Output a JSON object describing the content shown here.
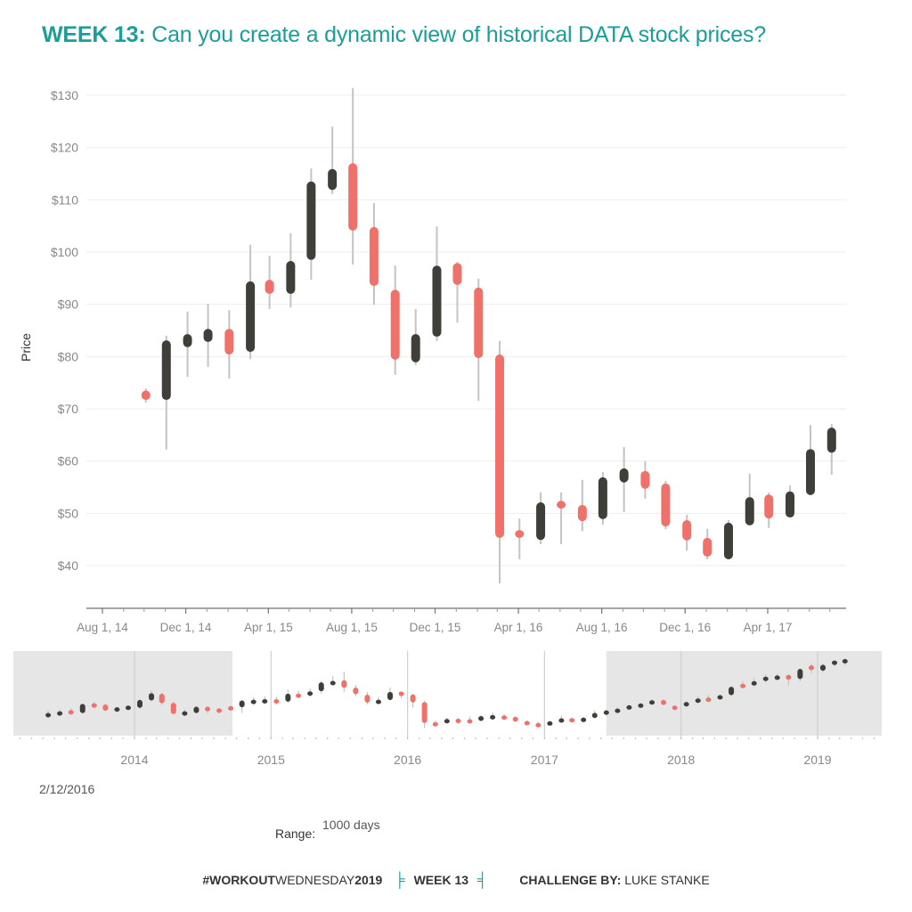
{
  "title": {
    "bold": "WEEK 13:",
    "rest": "Can you create a dynamic view of historical DATA stock prices?"
  },
  "colors": {
    "title_teal": "#1a9e97",
    "increase": "#3f3e39",
    "decrease": "#f0706a",
    "wick": "#c4c4c4",
    "gridline": "#eeeeee",
    "overview_shade": "#e6e6e6"
  },
  "controls": {
    "selected_date": "2/12/2016",
    "range_label": "Range:",
    "range_value": "1000 days"
  },
  "footer": {
    "hashtag_bold": "#WORKOUT",
    "hashtag_normal": "WEDNESDAY",
    "hashtag_year": "2019",
    "bracket_left": "╞",
    "week": "WEEK 13",
    "bracket_right": "╡",
    "challenge_label": "CHALLENGE BY:",
    "challenge_name": "LUKE STANKE"
  },
  "chart_data": [
    {
      "type": "candlestick",
      "name": "main-price-chart",
      "title": "",
      "xlabel": "",
      "ylabel": "Price",
      "ylim": [
        31,
        133
      ],
      "yticks": [
        40,
        50,
        60,
        70,
        80,
        90,
        100,
        110,
        120,
        130
      ],
      "ytick_labels": [
        "$40",
        "$50",
        "$60",
        "$70",
        "$80",
        "$90",
        "$100",
        "$110",
        "$120",
        "$130"
      ],
      "xlim": [
        "2014-06-20",
        "2017-09-20"
      ],
      "xticks": [
        "2014-08-01",
        "2014-12-01",
        "2015-04-01",
        "2015-08-01",
        "2015-12-01",
        "2016-04-01",
        "2016-08-01",
        "2016-12-01",
        "2017-04-01"
      ],
      "xtick_labels": [
        "Aug 1, 14",
        "Dec 1, 14",
        "Apr 1, 15",
        "Aug 1, 15",
        "Dec 1, 15",
        "Apr 1, 16",
        "Aug 1, 16",
        "Dec 1, 16",
        "Apr 1, 17"
      ],
      "grid": true,
      "candles": [
        {
          "date": "2014-09",
          "open": 73.5,
          "close": 71.7,
          "high": 73.9,
          "low": 71.2
        },
        {
          "date": "2014-10",
          "open": 71.7,
          "close": 83.1,
          "high": 84.0,
          "low": 62.2
        },
        {
          "date": "2014-11",
          "open": 81.8,
          "close": 84.3,
          "high": 88.6,
          "low": 76.1
        },
        {
          "date": "2014-12",
          "open": 82.8,
          "close": 85.3,
          "high": 90.1,
          "low": 78.0
        },
        {
          "date": "2015-01",
          "open": 85.3,
          "close": 80.4,
          "high": 88.9,
          "low": 75.8
        },
        {
          "date": "2015-02",
          "open": 80.9,
          "close": 94.4,
          "high": 101.4,
          "low": 79.5
        },
        {
          "date": "2015-03",
          "open": 94.7,
          "close": 92.0,
          "high": 99.3,
          "low": 89.1
        },
        {
          "date": "2015-04",
          "open": 92.0,
          "close": 98.3,
          "high": 103.6,
          "low": 89.4
        },
        {
          "date": "2015-05",
          "open": 98.5,
          "close": 113.5,
          "high": 116.0,
          "low": 94.7
        },
        {
          "date": "2015-06",
          "open": 111.9,
          "close": 115.9,
          "high": 124.0,
          "low": 111.1
        },
        {
          "date": "2015-07",
          "open": 117.0,
          "close": 104.1,
          "high": 131.4,
          "low": 97.6
        },
        {
          "date": "2015-08",
          "open": 104.8,
          "close": 93.5,
          "high": 109.4,
          "low": 89.9
        },
        {
          "date": "2015-09",
          "open": 92.8,
          "close": 79.4,
          "high": 97.4,
          "low": 76.5
        },
        {
          "date": "2015-10",
          "open": 78.9,
          "close": 84.3,
          "high": 89.1,
          "low": 78.4
        },
        {
          "date": "2015-11",
          "open": 83.8,
          "close": 97.4,
          "high": 104.9,
          "low": 83.0
        },
        {
          "date": "2015-12",
          "open": 97.9,
          "close": 93.7,
          "high": 98.1,
          "low": 86.5
        },
        {
          "date": "2016-01",
          "open": 93.2,
          "close": 79.7,
          "high": 94.9,
          "low": 71.5
        },
        {
          "date": "2016-02",
          "open": 80.4,
          "close": 45.3,
          "high": 83.0,
          "low": 36.6
        },
        {
          "date": "2016-03",
          "open": 46.8,
          "close": 45.3,
          "high": 49.0,
          "low": 41.2
        },
        {
          "date": "2016-04",
          "open": 44.9,
          "close": 52.1,
          "high": 54.0,
          "low": 44.1
        },
        {
          "date": "2016-05",
          "open": 52.4,
          "close": 50.9,
          "high": 54.0,
          "low": 44.1
        },
        {
          "date": "2016-06",
          "open": 51.6,
          "close": 48.5,
          "high": 56.4,
          "low": 46.6
        },
        {
          "date": "2016-07",
          "open": 48.9,
          "close": 56.9,
          "high": 57.9,
          "low": 47.8
        },
        {
          "date": "2016-08",
          "open": 55.9,
          "close": 58.6,
          "high": 62.7,
          "low": 50.2
        },
        {
          "date": "2016-09",
          "open": 58.1,
          "close": 54.7,
          "high": 60.0,
          "low": 52.8
        },
        {
          "date": "2016-10",
          "open": 55.7,
          "close": 47.5,
          "high": 56.2,
          "low": 47.0
        },
        {
          "date": "2016-11",
          "open": 48.7,
          "close": 44.8,
          "high": 49.7,
          "low": 42.9
        },
        {
          "date": "2016-12",
          "open": 45.3,
          "close": 41.7,
          "high": 47.0,
          "low": 41.2
        },
        {
          "date": "2017-01",
          "open": 41.2,
          "close": 48.2,
          "high": 48.7,
          "low": 41.2
        },
        {
          "date": "2017-02",
          "open": 47.7,
          "close": 53.1,
          "high": 57.6,
          "low": 47.7
        },
        {
          "date": "2017-03",
          "open": 53.6,
          "close": 49.0,
          "high": 54.0,
          "low": 47.2
        },
        {
          "date": "2017-04",
          "open": 49.2,
          "close": 54.2,
          "high": 55.3,
          "low": 49.2
        },
        {
          "date": "2017-05",
          "open": 53.5,
          "close": 62.3,
          "high": 66.9,
          "low": 53.5
        },
        {
          "date": "2017-06",
          "open": 61.6,
          "close": 66.4,
          "high": 67.1,
          "low": 57.4
        }
      ]
    },
    {
      "type": "candlestick",
      "name": "overview-range-chart",
      "title": "",
      "xlabel": "",
      "ylabel": "",
      "ylim": [
        30,
        160
      ],
      "xlim": [
        "2013-02-01",
        "2019-07-01"
      ],
      "xticks": [
        "2014-01-01",
        "2015-01-01",
        "2016-01-01",
        "2017-01-01",
        "2018-01-01",
        "2019-01-01"
      ],
      "xtick_labels": [
        "2014",
        "2015",
        "2016",
        "2017",
        "2018",
        "2019"
      ],
      "grid": false,
      "selection": {
        "start": "2014-09-20",
        "end": "2017-06-15",
        "days": 1000
      },
      "candles": [
        {
          "date": "2013-05",
          "open": 55.4,
          "close": 62.1,
          "high": 66,
          "low": 53
        },
        {
          "date": "2013-06",
          "open": 58.3,
          "close": 65.0,
          "high": 68,
          "low": 57
        },
        {
          "date": "2013-07",
          "open": 66.9,
          "close": 61.1,
          "high": 70,
          "low": 60
        },
        {
          "date": "2013-08",
          "open": 62.0,
          "close": 77.3,
          "high": 78,
          "low": 61
        },
        {
          "date": "2013-09",
          "open": 78.3,
          "close": 73.5,
          "high": 81,
          "low": 72
        },
        {
          "date": "2013-10",
          "open": 76.4,
          "close": 65.9,
          "high": 77,
          "low": 65
        },
        {
          "date": "2013-11",
          "open": 65.0,
          "close": 71.6,
          "high": 72,
          "low": 64
        },
        {
          "date": "2013-12",
          "open": 67.8,
          "close": 74.5,
          "high": 75,
          "low": 67
        },
        {
          "date": "2014-01",
          "open": 70.7,
          "close": 84.0,
          "high": 86,
          "low": 69
        },
        {
          "date": "2014-02",
          "open": 83.0,
          "close": 95.4,
          "high": 100,
          "low": 82
        },
        {
          "date": "2014-03",
          "open": 94.5,
          "close": 78.3,
          "high": 96,
          "low": 76
        },
        {
          "date": "2014-04",
          "open": 79.2,
          "close": 60.2,
          "high": 81,
          "low": 60
        },
        {
          "date": "2014-05",
          "open": 59.2,
          "close": 65.0,
          "high": 68,
          "low": 57
        },
        {
          "date": "2014-06",
          "open": 62.0,
          "close": 72.6,
          "high": 74,
          "low": 61
        },
        {
          "date": "2014-07",
          "open": 72.6,
          "close": 65.0,
          "high": 73,
          "low": 61
        },
        {
          "date": "2014-08",
          "open": 69.7,
          "close": 65.0,
          "high": 70,
          "low": 62
        },
        {
          "date": "2014-09",
          "open": 73.5,
          "close": 71.7,
          "high": 73.9,
          "low": 71.2
        },
        {
          "date": "2014-10",
          "open": 71.7,
          "close": 83.1,
          "high": 84.0,
          "low": 62.2
        },
        {
          "date": "2014-11",
          "open": 81.8,
          "close": 84.3,
          "high": 88.6,
          "low": 76.1
        },
        {
          "date": "2014-12",
          "open": 82.8,
          "close": 85.3,
          "high": 90.1,
          "low": 78.0
        },
        {
          "date": "2015-01",
          "open": 85.3,
          "close": 80.4,
          "high": 88.9,
          "low": 75.8
        },
        {
          "date": "2015-02",
          "open": 80.9,
          "close": 94.4,
          "high": 101.4,
          "low": 79.5
        },
        {
          "date": "2015-03",
          "open": 94.7,
          "close": 92.0,
          "high": 99.3,
          "low": 89.1
        },
        {
          "date": "2015-04",
          "open": 92.0,
          "close": 98.3,
          "high": 103.6,
          "low": 89.4
        },
        {
          "date": "2015-05",
          "open": 98.5,
          "close": 113.5,
          "high": 116.0,
          "low": 94.7
        },
        {
          "date": "2015-06",
          "open": 111.9,
          "close": 115.9,
          "high": 124.0,
          "low": 111.1
        },
        {
          "date": "2015-07",
          "open": 117.0,
          "close": 104.1,
          "high": 131.4,
          "low": 97.6
        },
        {
          "date": "2015-08",
          "open": 104.8,
          "close": 93.5,
          "high": 109.4,
          "low": 89.9
        },
        {
          "date": "2015-09",
          "open": 92.8,
          "close": 79.4,
          "high": 97.4,
          "low": 76.5
        },
        {
          "date": "2015-10",
          "open": 78.9,
          "close": 84.3,
          "high": 89.1,
          "low": 78.4
        },
        {
          "date": "2015-11",
          "open": 83.8,
          "close": 97.4,
          "high": 104.9,
          "low": 83.0
        },
        {
          "date": "2015-12",
          "open": 97.9,
          "close": 93.7,
          "high": 98.1,
          "low": 86.5
        },
        {
          "date": "2016-01",
          "open": 93.2,
          "close": 79.7,
          "high": 94.9,
          "low": 71.5
        },
        {
          "date": "2016-02",
          "open": 80.4,
          "close": 45.3,
          "high": 83.0,
          "low": 36.6
        },
        {
          "date": "2016-03",
          "open": 46.8,
          "close": 45.3,
          "high": 49.0,
          "low": 41.2
        },
        {
          "date": "2016-04",
          "open": 44.9,
          "close": 52.1,
          "high": 54.0,
          "low": 44.1
        },
        {
          "date": "2016-05",
          "open": 52.4,
          "close": 50.9,
          "high": 54.0,
          "low": 44.1
        },
        {
          "date": "2016-06",
          "open": 51.6,
          "close": 48.5,
          "high": 56.4,
          "low": 46.6
        },
        {
          "date": "2016-07",
          "open": 48.9,
          "close": 56.9,
          "high": 57.9,
          "low": 47.8
        },
        {
          "date": "2016-08",
          "open": 55.9,
          "close": 58.6,
          "high": 62.7,
          "low": 50.2
        },
        {
          "date": "2016-09",
          "open": 58.1,
          "close": 54.7,
          "high": 60.0,
          "low": 52.8
        },
        {
          "date": "2016-10",
          "open": 55.7,
          "close": 47.5,
          "high": 56.2,
          "low": 47.0
        },
        {
          "date": "2016-11",
          "open": 48.7,
          "close": 44.8,
          "high": 49.7,
          "low": 42.9
        },
        {
          "date": "2016-12",
          "open": 45.3,
          "close": 41.7,
          "high": 47.0,
          "low": 41.2
        },
        {
          "date": "2017-01",
          "open": 41.2,
          "close": 48.2,
          "high": 48.7,
          "low": 41.2
        },
        {
          "date": "2017-02",
          "open": 47.7,
          "close": 53.1,
          "high": 57.6,
          "low": 47.7
        },
        {
          "date": "2017-03",
          "open": 53.6,
          "close": 49.0,
          "high": 54.0,
          "low": 47.2
        },
        {
          "date": "2017-04",
          "open": 49.2,
          "close": 54.2,
          "high": 55.3,
          "low": 49.2
        },
        {
          "date": "2017-05",
          "open": 53.5,
          "close": 62.3,
          "high": 66.9,
          "low": 53.5
        },
        {
          "date": "2017-06",
          "open": 61.6,
          "close": 66.4,
          "high": 67.1,
          "low": 57.4
        },
        {
          "date": "2017-07",
          "open": 66.4,
          "close": 69.5,
          "high": 71,
          "low": 65
        },
        {
          "date": "2017-08",
          "open": 69.5,
          "close": 75.0,
          "high": 76,
          "low": 68
        },
        {
          "date": "2017-09",
          "open": 75.0,
          "close": 78.0,
          "high": 79,
          "low": 74
        },
        {
          "date": "2017-10",
          "open": 78.0,
          "close": 83.5,
          "high": 85,
          "low": 77
        },
        {
          "date": "2017-11",
          "open": 84.0,
          "close": 75.5,
          "high": 85,
          "low": 75
        },
        {
          "date": "2017-12",
          "open": 74.5,
          "close": 72.5,
          "high": 75,
          "low": 71.5
        },
        {
          "date": "2018-01",
          "open": 73.0,
          "close": 80.5,
          "high": 81.5,
          "low": 72
        },
        {
          "date": "2018-02",
          "open": 81.0,
          "close": 86.5,
          "high": 90,
          "low": 79
        },
        {
          "date": "2018-03",
          "open": 88.0,
          "close": 85.5,
          "high": 92,
          "low": 84
        },
        {
          "date": "2018-04",
          "open": 86.0,
          "close": 92.0,
          "high": 93,
          "low": 85
        },
        {
          "date": "2018-05",
          "open": 92.0,
          "close": 106.0,
          "high": 107,
          "low": 91
        },
        {
          "date": "2018-06",
          "open": 111.0,
          "close": 108.0,
          "high": 115,
          "low": 105
        },
        {
          "date": "2018-07",
          "open": 108.0,
          "close": 115.5,
          "high": 122,
          "low": 107
        },
        {
          "date": "2018-08",
          "open": 117.0,
          "close": 123.0,
          "high": 127,
          "low": 113
        },
        {
          "date": "2018-09",
          "open": 123.0,
          "close": 125.0,
          "high": 128,
          "low": 122
        },
        {
          "date": "2018-10",
          "open": 126.0,
          "close": 118.0,
          "high": 127,
          "low": 108
        },
        {
          "date": "2018-11",
          "open": 119.0,
          "close": 136.0,
          "high": 137,
          "low": 115
        },
        {
          "date": "2018-12",
          "open": 142.0,
          "close": 134.0,
          "high": 145,
          "low": 128
        },
        {
          "date": "2019-01",
          "open": 133.0,
          "close": 143.0,
          "high": 144,
          "low": 130
        },
        {
          "date": "2019-02",
          "open": 145.0,
          "close": 150.0,
          "high": 151,
          "low": 140
        },
        {
          "date": "2019-03",
          "open": 151.0,
          "close": 152.5,
          "high": 154,
          "low": 141
        }
      ]
    }
  ]
}
